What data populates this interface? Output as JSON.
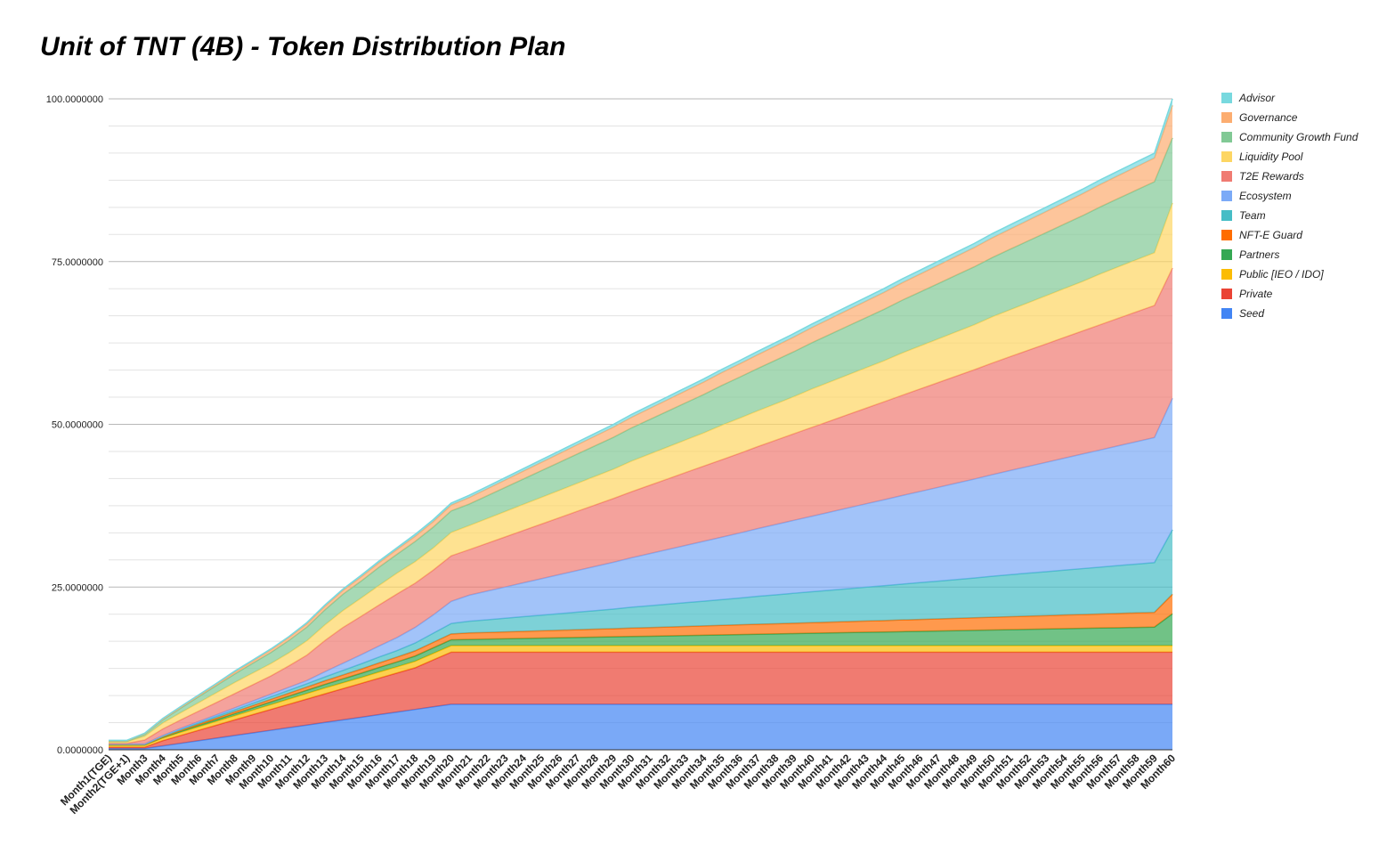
{
  "chart_data": {
    "type": "area",
    "stacked": true,
    "title": "Unit of TNT (4B) - Token Distribution Plan",
    "xlabel": "",
    "ylabel": "",
    "ylim": [
      0,
      100
    ],
    "y_ticks": [
      "0.0000000",
      "25.0000000",
      "50.0000000",
      "75.0000000",
      "100.0000000"
    ],
    "legend_position": "right",
    "categories": [
      "Month1(TGE)",
      "Month2(TGE+1)",
      "Month3",
      "Month4",
      "Month5",
      "Month6",
      "Month7",
      "Month8",
      "Month9",
      "Month10",
      "Month11",
      "Month12",
      "Month13",
      "Month14",
      "Month15",
      "Month16",
      "Month17",
      "Month18",
      "Month19",
      "Month20",
      "Month21",
      "Month22",
      "Month23",
      "Month24",
      "Month25",
      "Month26",
      "Month27",
      "Month28",
      "Month29",
      "Month30",
      "Month31",
      "Month32",
      "Month33",
      "Month34",
      "Month35",
      "Month36",
      "Month37",
      "Month38",
      "Month39",
      "Month40",
      "Month41",
      "Month42",
      "Month43",
      "Month44",
      "Month45",
      "Month46",
      "Month47",
      "Month48",
      "Month49",
      "Month50",
      "Month51",
      "Month52",
      "Month53",
      "Month54",
      "Month55",
      "Month56",
      "Month57",
      "Month58",
      "Month59",
      "Month60"
    ],
    "series": [
      {
        "name": "Seed",
        "color": "#4285f4",
        "values": [
          0.2,
          0.2,
          0.2,
          0.6,
          1.0,
          1.4,
          1.8,
          2.2,
          2.6,
          3.0,
          3.4,
          3.8,
          4.2,
          4.6,
          5.0,
          5.4,
          5.8,
          6.2,
          6.6,
          7.0,
          7.0,
          7.0,
          7.0,
          7.0,
          7.0,
          7.0,
          7.0,
          7.0,
          7.0,
          7.0,
          7.0,
          7.0,
          7.0,
          7.0,
          7.0,
          7.0,
          7.0,
          7.0,
          7.0,
          7.0,
          7.0,
          7.0,
          7.0,
          7.0,
          7.0,
          7.0,
          7.0,
          7.0,
          7.0,
          7.0,
          7.0,
          7.0,
          7.0,
          7.0,
          7.0,
          7.0,
          7.0,
          7.0,
          7.0,
          7.0
        ]
      },
      {
        "name": "Private",
        "color": "#ea4335",
        "values": [
          0.2,
          0.2,
          0.2,
          0.8,
          1.2,
          1.6,
          2.0,
          2.4,
          2.8,
          3.2,
          3.6,
          4.0,
          4.4,
          4.8,
          5.2,
          5.6,
          6.0,
          6.4,
          7.2,
          8.0,
          8.0,
          8.0,
          8.0,
          8.0,
          8.0,
          8.0,
          8.0,
          8.0,
          8.0,
          8.0,
          8.0,
          8.0,
          8.0,
          8.0,
          8.0,
          8.0,
          8.0,
          8.0,
          8.0,
          8.0,
          8.0,
          8.0,
          8.0,
          8.0,
          8.0,
          8.0,
          8.0,
          8.0,
          8.0,
          8.0,
          8.0,
          8.0,
          8.0,
          8.0,
          8.0,
          8.0,
          8.0,
          8.0,
          8.0,
          8.0
        ]
      },
      {
        "name": "Public [IEO / IDO]",
        "color": "#fbbc04",
        "values": [
          0.3,
          0.3,
          0.3,
          0.4,
          0.5,
          0.55,
          0.6,
          0.65,
          0.7,
          0.75,
          0.8,
          0.85,
          0.9,
          0.9,
          0.9,
          0.95,
          0.95,
          1.0,
          1.0,
          1.0,
          1.0,
          1.0,
          1.0,
          1.0,
          1.0,
          1.0,
          1.0,
          1.0,
          1.0,
          1.0,
          1.0,
          1.0,
          1.0,
          1.0,
          1.0,
          1.0,
          1.0,
          1.0,
          1.0,
          1.0,
          1.0,
          1.0,
          1.0,
          1.0,
          1.0,
          1.0,
          1.0,
          1.0,
          1.0,
          1.0,
          1.0,
          1.0,
          1.0,
          1.0,
          1.0,
          1.0,
          1.0,
          1.0,
          1.0,
          1.0
        ]
      },
      {
        "name": "Partners",
        "color": "#34a853",
        "values": [
          0.05,
          0.05,
          0.05,
          0.1,
          0.15,
          0.2,
          0.25,
          0.3,
          0.35,
          0.4,
          0.45,
          0.5,
          0.55,
          0.6,
          0.65,
          0.7,
          0.75,
          0.8,
          0.85,
          0.9,
          0.95,
          1.0,
          1.05,
          1.1,
          1.15,
          1.2,
          1.25,
          1.3,
          1.35,
          1.4,
          1.45,
          1.5,
          1.55,
          1.6,
          1.65,
          1.7,
          1.75,
          1.8,
          1.85,
          1.9,
          1.95,
          2.0,
          2.05,
          2.1,
          2.15,
          2.2,
          2.25,
          2.3,
          2.35,
          2.4,
          2.45,
          2.5,
          2.55,
          2.6,
          2.65,
          2.7,
          2.75,
          2.8,
          2.85,
          4.9
        ]
      },
      {
        "name": "NFT-E Guard",
        "color": "#ff6d01",
        "values": [
          0.05,
          0.05,
          0.05,
          0.1,
          0.15,
          0.2,
          0.25,
          0.3,
          0.35,
          0.4,
          0.45,
          0.5,
          0.55,
          0.6,
          0.65,
          0.7,
          0.75,
          0.8,
          0.85,
          0.9,
          1.0,
          1.03,
          1.06,
          1.1,
          1.13,
          1.16,
          1.2,
          1.23,
          1.26,
          1.3,
          1.33,
          1.36,
          1.4,
          1.43,
          1.46,
          1.5,
          1.53,
          1.56,
          1.6,
          1.63,
          1.66,
          1.7,
          1.73,
          1.76,
          1.8,
          1.83,
          1.86,
          1.9,
          1.93,
          1.96,
          2.0,
          2.03,
          2.06,
          2.1,
          2.13,
          2.16,
          2.2,
          2.23,
          2.26,
          3.0
        ]
      },
      {
        "name": "Team",
        "color": "#46bdc6",
        "values": [
          0.05,
          0.05,
          0.05,
          0.1,
          0.15,
          0.2,
          0.25,
          0.3,
          0.35,
          0.4,
          0.45,
          0.5,
          0.6,
          0.7,
          0.8,
          0.9,
          1.0,
          1.2,
          1.4,
          1.6,
          1.8,
          1.95,
          2.1,
          2.25,
          2.4,
          2.55,
          2.7,
          2.85,
          3.0,
          3.2,
          3.35,
          3.5,
          3.65,
          3.8,
          3.95,
          4.1,
          4.3,
          4.45,
          4.6,
          4.75,
          4.9,
          5.05,
          5.2,
          5.35,
          5.5,
          5.65,
          5.8,
          5.95,
          6.1,
          6.3,
          6.45,
          6.6,
          6.75,
          6.9,
          7.05,
          7.2,
          7.35,
          7.5,
          7.65,
          9.9
        ]
      },
      {
        "name": "Ecosystem",
        "color": "#7baaf7",
        "values": [
          0.05,
          0.05,
          0.05,
          0.1,
          0.15,
          0.2,
          0.25,
          0.3,
          0.35,
          0.4,
          0.45,
          0.5,
          0.8,
          1.1,
          1.4,
          1.7,
          2.0,
          2.4,
          2.8,
          3.4,
          4.0,
          4.4,
          4.8,
          5.2,
          5.6,
          6.0,
          6.4,
          6.8,
          7.2,
          7.6,
          8.0,
          8.4,
          8.8,
          9.2,
          9.6,
          10.0,
          10.4,
          10.8,
          11.2,
          11.6,
          12.0,
          12.4,
          12.8,
          13.2,
          13.6,
          14.0,
          14.4,
          14.8,
          15.2,
          15.6,
          16.0,
          16.4,
          16.8,
          17.2,
          17.6,
          18.0,
          18.4,
          18.8,
          19.2,
          20.2
        ]
      },
      {
        "name": "T2E Rewards",
        "color": "#f07b72",
        "values": [
          0.1,
          0.1,
          0.6,
          1.0,
          1.3,
          1.6,
          1.9,
          2.2,
          2.5,
          2.8,
          3.3,
          3.9,
          4.8,
          5.5,
          5.9,
          6.3,
          6.7,
          6.8,
          6.9,
          7.0,
          7.0,
          7.35,
          7.7,
          8.05,
          8.4,
          8.75,
          9.1,
          9.45,
          9.8,
          10.15,
          10.5,
          10.85,
          11.2,
          11.55,
          11.9,
          12.25,
          12.6,
          12.95,
          13.3,
          13.65,
          14.0,
          14.35,
          14.7,
          15.05,
          15.4,
          15.75,
          16.1,
          16.45,
          16.8,
          17.15,
          17.5,
          17.85,
          18.2,
          18.55,
          18.9,
          19.25,
          19.6,
          19.95,
          20.3,
          20.0
        ]
      },
      {
        "name": "Liquidity Pool",
        "color": "#fdd663",
        "values": [
          0.2,
          0.2,
          0.6,
          0.9,
          1.1,
          1.3,
          1.5,
          1.7,
          1.8,
          1.9,
          2.0,
          2.2,
          2.4,
          2.6,
          2.8,
          3.0,
          3.2,
          3.3,
          3.4,
          3.6,
          3.7,
          3.8,
          3.9,
          4.0,
          4.1,
          4.2,
          4.3,
          4.4,
          4.5,
          4.7,
          4.8,
          4.9,
          5.0,
          5.1,
          5.3,
          5.4,
          5.5,
          5.6,
          5.7,
          5.9,
          6.0,
          6.1,
          6.2,
          6.3,
          6.5,
          6.6,
          6.7,
          6.8,
          6.9,
          7.1,
          7.2,
          7.3,
          7.4,
          7.5,
          7.6,
          7.8,
          7.9,
          8.0,
          8.1,
          10.0
        ]
      },
      {
        "name": "Community Growth Fund",
        "color": "#81c995",
        "values": [
          0.1,
          0.1,
          0.3,
          0.5,
          0.7,
          0.9,
          1.1,
          1.3,
          1.5,
          1.7,
          1.9,
          2.1,
          2.3,
          2.5,
          2.6,
          2.8,
          2.9,
          3.1,
          3.2,
          3.3,
          3.3,
          3.5,
          3.7,
          3.9,
          4.1,
          4.3,
          4.5,
          4.7,
          4.9,
          5.1,
          5.3,
          5.5,
          5.7,
          5.9,
          6.1,
          6.3,
          6.5,
          6.7,
          6.9,
          7.1,
          7.3,
          7.5,
          7.7,
          7.9,
          8.1,
          8.3,
          8.5,
          8.7,
          8.9,
          9.1,
          9.3,
          9.5,
          9.7,
          9.9,
          10.1,
          10.3,
          10.5,
          10.7,
          10.9,
          10.0
        ]
      },
      {
        "name": "Governance",
        "color": "#fcad70",
        "values": [
          0.1,
          0.1,
          0.1,
          0.1,
          0.15,
          0.2,
          0.25,
          0.3,
          0.35,
          0.4,
          0.45,
          0.5,
          0.55,
          0.6,
          0.65,
          0.7,
          0.75,
          0.8,
          0.85,
          0.9,
          1.0,
          1.07,
          1.14,
          1.21,
          1.28,
          1.35,
          1.42,
          1.49,
          1.56,
          1.63,
          1.7,
          1.77,
          1.84,
          1.91,
          1.98,
          2.05,
          2.12,
          2.19,
          2.26,
          2.33,
          2.4,
          2.47,
          2.54,
          2.61,
          2.68,
          2.75,
          2.82,
          2.89,
          2.96,
          3.03,
          3.1,
          3.17,
          3.24,
          3.31,
          3.38,
          3.45,
          3.52,
          3.59,
          3.66,
          5.0
        ]
      },
      {
        "name": "Advisor",
        "color": "#78d9df",
        "values": [
          0.05,
          0.05,
          0.05,
          0.1,
          0.1,
          0.1,
          0.1,
          0.15,
          0.15,
          0.15,
          0.15,
          0.2,
          0.2,
          0.2,
          0.25,
          0.25,
          0.25,
          0.3,
          0.3,
          0.3,
          0.35,
          0.36,
          0.37,
          0.38,
          0.39,
          0.4,
          0.41,
          0.42,
          0.43,
          0.44,
          0.45,
          0.46,
          0.47,
          0.48,
          0.49,
          0.5,
          0.51,
          0.52,
          0.53,
          0.54,
          0.55,
          0.56,
          0.57,
          0.58,
          0.59,
          0.6,
          0.61,
          0.62,
          0.63,
          0.64,
          0.65,
          0.66,
          0.67,
          0.68,
          0.69,
          0.7,
          0.71,
          0.72,
          0.73,
          1.0
        ]
      }
    ]
  }
}
